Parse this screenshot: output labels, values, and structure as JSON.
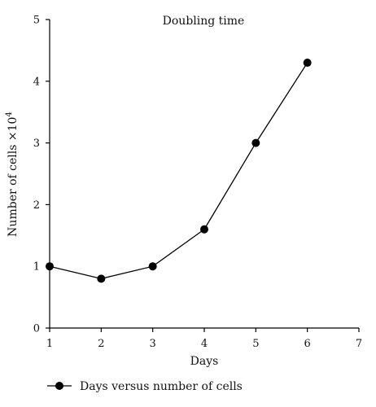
{
  "chart_data": {
    "type": "line",
    "title": "Doubling time",
    "xlabel": "Days",
    "ylabel": "Number of cells ×10",
    "ylabel_exponent": "4",
    "xlim": [
      1,
      7
    ],
    "ylim": [
      0,
      5
    ],
    "x_ticks": [
      "1",
      "2",
      "3",
      "4",
      "5",
      "6",
      "7"
    ],
    "y_ticks": [
      "0",
      "1",
      "2",
      "3",
      "4",
      "5"
    ],
    "grid": false,
    "legend_position": "bottom-left",
    "series": [
      {
        "name": "Days versus number of cells",
        "color": "#000000",
        "marker": "circle",
        "x": [
          1,
          2,
          3,
          4,
          5,
          6
        ],
        "y": [
          1.0,
          0.8,
          1.0,
          1.6,
          3.0,
          4.3
        ]
      }
    ]
  }
}
